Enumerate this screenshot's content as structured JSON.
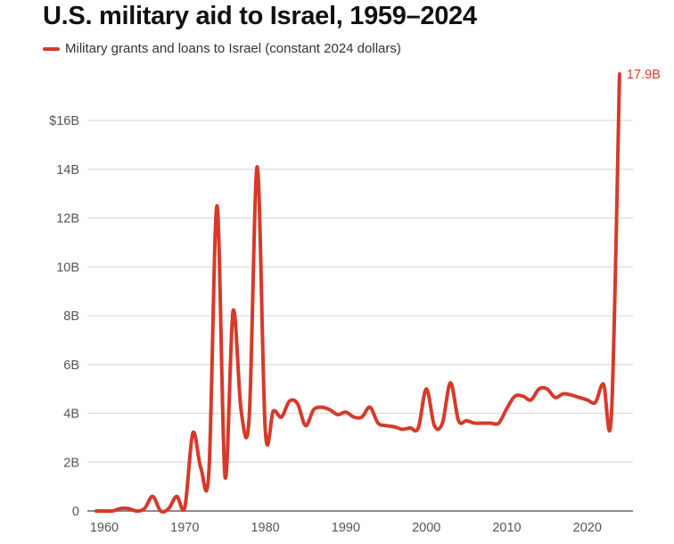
{
  "colors": {
    "series": "#d63a2a",
    "grid": "#dddddd",
    "axis": "#666666",
    "title": "#111111",
    "tick": "#555555"
  },
  "chart_data": {
    "type": "line",
    "title": "U.S. military aid to Israel, 1959–2024",
    "xlabel": "",
    "ylabel": "",
    "legend": {
      "placement": "top-left",
      "entries": [
        "Military grants and loans to Israel (constant 2024 dollars)"
      ]
    },
    "grid": true,
    "xlim": [
      1959,
      2024
    ],
    "ylim": [
      0,
      18
    ],
    "x_ticks": [
      1960,
      1970,
      1980,
      1990,
      2000,
      2010,
      2020
    ],
    "x_tick_labels": [
      "1960",
      "1970",
      "1980",
      "1990",
      "2000",
      "2010",
      "2020"
    ],
    "y_ticks": [
      0,
      2,
      4,
      6,
      8,
      10,
      12,
      14,
      16
    ],
    "y_tick_labels": [
      "0",
      "2B",
      "4B",
      "6B",
      "8B",
      "10B",
      "12B",
      "14B",
      "$16B"
    ],
    "units": "billions of constant 2024 US dollars",
    "annotations": [
      {
        "x": 2024,
        "y": 17.9,
        "text": "17.9B"
      }
    ],
    "series": [
      {
        "name": "Military grants and loans to Israel (constant 2024 dollars)",
        "x": [
          1959,
          1960,
          1961,
          1962,
          1963,
          1964,
          1965,
          1966,
          1967,
          1968,
          1969,
          1970,
          1971,
          1972,
          1973,
          1974,
          1975,
          1976,
          1977,
          1978,
          1979,
          1980,
          1981,
          1982,
          1983,
          1984,
          1985,
          1986,
          1987,
          1988,
          1989,
          1990,
          1991,
          1992,
          1993,
          1994,
          1995,
          1996,
          1997,
          1998,
          1999,
          2000,
          2001,
          2002,
          2003,
          2004,
          2005,
          2006,
          2007,
          2008,
          2009,
          2010,
          2011,
          2012,
          2013,
          2014,
          2015,
          2016,
          2017,
          2018,
          2019,
          2020,
          2021,
          2022,
          2023,
          2024
        ],
        "values": [
          0,
          0,
          0,
          0.1,
          0.1,
          0,
          0.1,
          0.6,
          0,
          0.1,
          0.6,
          0.15,
          3.2,
          1.75,
          1.65,
          12.5,
          1.4,
          8.2,
          4.1,
          3.85,
          14.1,
          3.3,
          4.1,
          3.85,
          4.5,
          4.4,
          3.5,
          4.15,
          4.25,
          4.15,
          3.95,
          4.05,
          3.85,
          3.85,
          4.25,
          3.6,
          3.5,
          3.45,
          3.35,
          3.4,
          3.4,
          5.0,
          3.5,
          3.6,
          5.25,
          3.7,
          3.7,
          3.6,
          3.6,
          3.6,
          3.6,
          4.2,
          4.7,
          4.7,
          4.55,
          5.0,
          5.0,
          4.65,
          4.8,
          4.75,
          4.65,
          4.55,
          4.45,
          5.2,
          4.0,
          17.9
        ]
      }
    ]
  }
}
